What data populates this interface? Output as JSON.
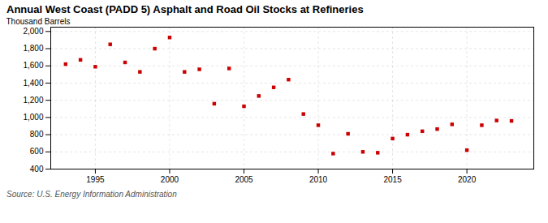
{
  "chart_data": {
    "type": "scatter",
    "title": "Annual West Coast (PADD 5) Asphalt and Road Oil Stocks at Refineries",
    "ylabel": "Thousand Barrels",
    "source": "Source: U.S. Energy Information Administration",
    "x": [
      1993,
      1994,
      1995,
      1996,
      1997,
      1998,
      1999,
      2000,
      2001,
      2002,
      2003,
      2004,
      2005,
      2006,
      2007,
      2008,
      2009,
      2010,
      2011,
      2012,
      2013,
      2014,
      2015,
      2016,
      2017,
      2018,
      2019,
      2020,
      2021,
      2022,
      2023
    ],
    "values": [
      1620,
      1670,
      1590,
      1850,
      1640,
      1530,
      1800,
      1930,
      1530,
      1560,
      1160,
      1570,
      1130,
      1250,
      1350,
      1440,
      1040,
      910,
      580,
      810,
      600,
      590,
      755,
      800,
      840,
      865,
      920,
      620,
      910,
      965,
      960
    ],
    "color": "#cc0000",
    "marker": "square",
    "grid": true,
    "xlim": [
      1992.0,
      2024.5
    ],
    "xticks": [
      1995,
      2000,
      2005,
      2010,
      2015,
      2020
    ],
    "ylim": [
      400,
      2050
    ],
    "yticks": [
      400,
      600,
      800,
      {
        "value": 1000,
        "label": "1,000"
      },
      {
        "value": 1200,
        "label": "1,200"
      },
      {
        "value": 1400,
        "label": "1,400"
      },
      {
        "value": 1600,
        "label": "1,600"
      },
      {
        "value": 1800,
        "label": "1,800"
      },
      {
        "value": 2000,
        "label": "2,000"
      }
    ]
  }
}
